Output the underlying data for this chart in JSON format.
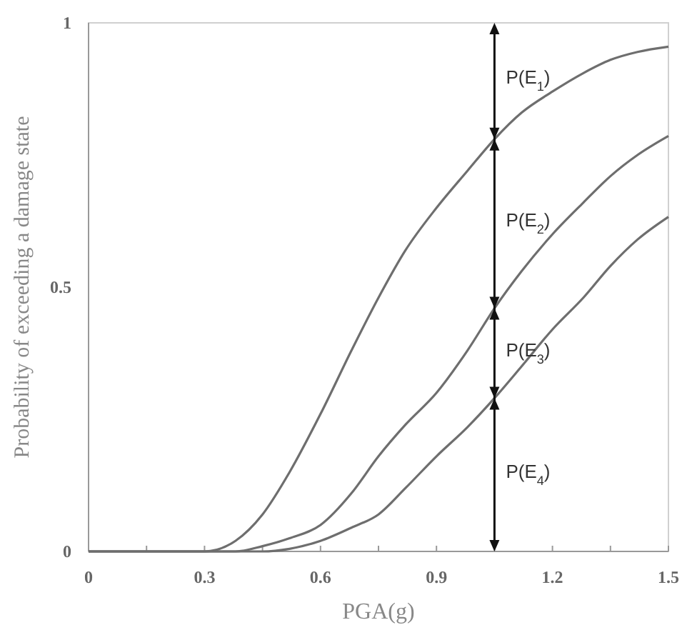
{
  "chart_data": {
    "type": "line",
    "xlabel": "PGA(g)",
    "ylabel": "Probability of exceeding a damage state",
    "xlim": [
      0,
      1.5
    ],
    "ylim": [
      0,
      1
    ],
    "xticks": [
      0,
      {
        "value": 0.15,
        "label": null
      },
      0.3,
      {
        "value": 0.45,
        "label": null
      },
      0.6,
      {
        "value": 0.75,
        "label": null
      },
      0.9,
      {
        "value": 1.05,
        "label": null
      },
      1.2,
      {
        "value": 1.35,
        "label": null
      },
      1.5
    ],
    "yticks": [
      0,
      0.5,
      1
    ],
    "marker": "none",
    "line_style": "solid",
    "ref_lines": [
      {
        "axis": "x",
        "value": 1.05
      }
    ],
    "x": [
      0,
      0.15,
      0.3,
      0.38,
      0.45,
      0.52,
      0.6,
      0.68,
      0.75,
      0.82,
      0.9,
      0.98,
      1.05,
      1.12,
      1.2,
      1.28,
      1.35,
      1.42,
      1.5
    ],
    "series": [
      {
        "color": "#6e6e6e",
        "values": [
          0,
          0,
          0,
          0.02,
          0.07,
          0.15,
          0.26,
          0.38,
          0.48,
          0.57,
          0.65,
          0.72,
          0.78,
          0.83,
          0.87,
          0.905,
          0.93,
          0.945,
          0.955
        ]
      },
      {
        "color": "#6e6e6e",
        "values": [
          0,
          0,
          0,
          0,
          0.01,
          0.025,
          0.05,
          0.11,
          0.18,
          0.24,
          0.3,
          0.38,
          0.46,
          0.53,
          0.6,
          0.66,
          0.71,
          0.75,
          0.786
        ]
      },
      {
        "color": "#6e6e6e",
        "values": [
          0,
          0,
          0,
          0,
          0,
          0.005,
          0.02,
          0.045,
          0.07,
          0.12,
          0.18,
          0.235,
          0.29,
          0.35,
          0.42,
          0.48,
          0.54,
          0.59,
          0.633
        ]
      }
    ],
    "annotations": [
      "P(E$_{1}$)",
      "P(E$_{2}$)",
      "P(E$_{3}$)",
      "P(E$_{4}$)"
    ]
  }
}
